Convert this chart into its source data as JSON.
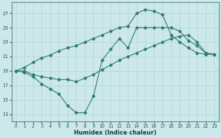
{
  "xlabel": "Humidex (Indice chaleur)",
  "bg_color": "#cce8ea",
  "line_color": "#2e7d6e",
  "grid_color": "#b8d8da",
  "xlim": [
    -0.5,
    23.5
  ],
  "ylim": [
    12,
    28.5
  ],
  "yticks": [
    13,
    15,
    17,
    19,
    21,
    23,
    25,
    27
  ],
  "xticks": [
    0,
    1,
    2,
    3,
    4,
    5,
    6,
    7,
    8,
    9,
    10,
    11,
    12,
    13,
    14,
    15,
    16,
    17,
    18,
    19,
    20,
    21,
    22,
    23
  ],
  "line1_x": [
    0,
    1,
    2,
    3,
    4,
    5,
    6,
    7,
    8,
    9,
    10,
    11,
    12,
    13,
    14,
    15,
    16,
    17,
    18,
    19,
    20,
    21,
    22,
    23
  ],
  "line1_y": [
    19.0,
    18.8,
    18.2,
    17.2,
    16.5,
    15.8,
    14.2,
    13.2,
    13.2,
    15.5,
    20.5,
    22.0,
    23.5,
    22.2,
    25.0,
    25.0,
    25.0,
    25.0,
    25.0,
    24.5,
    23.2,
    22.5,
    21.5,
    21.3
  ],
  "line2_x": [
    0,
    1,
    2,
    3,
    4,
    5,
    6,
    7,
    8,
    9,
    10,
    11,
    12,
    13,
    14,
    15,
    16,
    17,
    18,
    19,
    20,
    21,
    22,
    23
  ],
  "line2_y": [
    19.0,
    19.5,
    20.2,
    20.8,
    21.2,
    21.8,
    22.2,
    22.5,
    23.0,
    23.5,
    24.0,
    24.5,
    25.0,
    25.2,
    27.0,
    27.5,
    27.3,
    26.8,
    24.0,
    23.0,
    22.2,
    21.5,
    21.3,
    21.3
  ],
  "line3_x": [
    0,
    1,
    2,
    3,
    4,
    5,
    6,
    7,
    8,
    9,
    10,
    11,
    12,
    13,
    14,
    15,
    16,
    17,
    18,
    19,
    20,
    21,
    22,
    23
  ],
  "line3_y": [
    19.0,
    19.0,
    18.5,
    18.2,
    18.0,
    17.8,
    17.8,
    17.5,
    18.0,
    18.5,
    19.2,
    19.8,
    20.5,
    21.0,
    21.5,
    22.0,
    22.5,
    23.0,
    23.5,
    23.8,
    24.0,
    23.0,
    21.5,
    21.3
  ]
}
